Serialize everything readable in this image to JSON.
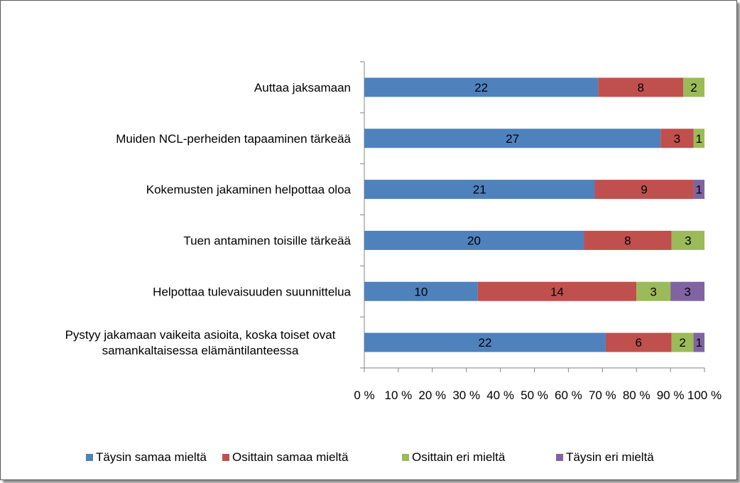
{
  "chart_data": {
    "type": "bar",
    "orientation": "horizontal",
    "stacking": "percent",
    "categories": [
      [
        "Auttaa jaksamaan"
      ],
      [
        "Muiden NCL-perheiden tapaaminen tärkeää"
      ],
      [
        "Kokemusten jakaminen helpottaa oloa"
      ],
      [
        "Tuen antaminen toisille tärkeää"
      ],
      [
        "Helpottaa tulevaisuuden suunnittelua"
      ],
      [
        "Pystyy jakamaan vaikeita asioita, koska toiset ovat",
        "samankaltaisessa elämäntilanteessa"
      ]
    ],
    "series": [
      {
        "name": "Täysin samaa mieltä",
        "color": "#4F81BD",
        "values": [
          22,
          27,
          21,
          20,
          10,
          22
        ]
      },
      {
        "name": "Osittain samaa mieltä",
        "color": "#C0504D",
        "values": [
          8,
          3,
          9,
          8,
          14,
          6
        ]
      },
      {
        "name": "Osittain eri mieltä",
        "color": "#9BBB59",
        "values": [
          2,
          1,
          0,
          3,
          3,
          2
        ]
      },
      {
        "name": "Täysin eri mieltä",
        "color": "#8064A2",
        "values": [
          0,
          0,
          1,
          0,
          3,
          1
        ]
      }
    ],
    "x_ticks": [
      "0 %",
      "10 %",
      "20 %",
      "30 %",
      "40 %",
      "50 %",
      "60 %",
      "70 %",
      "80 %",
      "90 %",
      "100 %"
    ],
    "xlim": [
      0,
      100
    ],
    "grid": false,
    "legend_position": "bottom",
    "title": "",
    "xlabel": "",
    "ylabel": ""
  }
}
